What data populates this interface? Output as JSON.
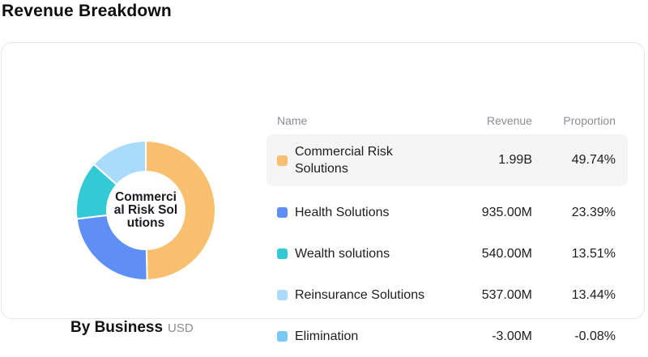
{
  "title": "Revenue Breakdown",
  "footer": {
    "label": "By Business",
    "unit": "USD"
  },
  "donut": {
    "center_lines": [
      "Commerci",
      "al Risk Sol",
      "utions"
    ],
    "center_label": "Commercial Risk Solutions"
  },
  "table": {
    "headers": {
      "name": "Name",
      "revenue": "Revenue",
      "proportion": "Proportion"
    },
    "rows": [
      {
        "name": "Commercial Risk Solutions",
        "revenue": "1.99B",
        "proportion": "49.74%",
        "color": "#f8c06e",
        "highlighted": true
      },
      {
        "name": "Health Solutions",
        "revenue": "935.00M",
        "proportion": "23.39%",
        "color": "#5e8ff5",
        "highlighted": false
      },
      {
        "name": "Wealth solutions",
        "revenue": "540.00M",
        "proportion": "13.51%",
        "color": "#33c9d5",
        "highlighted": false
      },
      {
        "name": "Reinsurance Solutions",
        "revenue": "537.00M",
        "proportion": "13.44%",
        "color": "#a9dcfb",
        "highlighted": false
      },
      {
        "name": "Elimination",
        "revenue": "-3.00M",
        "proportion": "-0.08%",
        "color": "#7ac8f8",
        "highlighted": false
      }
    ]
  },
  "chart_data": {
    "type": "pie",
    "donut": true,
    "title": "Revenue Breakdown",
    "subtitle": "By Business",
    "unit": "USD",
    "direction": "clockwise",
    "start_angle_deg": 0,
    "categories": [
      "Commercial Risk Solutions",
      "Health Solutions",
      "Wealth solutions",
      "Reinsurance Solutions",
      "Elimination"
    ],
    "series": [
      {
        "name": "Revenue",
        "labels": [
          "1.99B",
          "935.00M",
          "540.00M",
          "537.00M",
          "-3.00M"
        ],
        "values": [
          1990000000,
          935000000,
          540000000,
          537000000,
          -3000000
        ]
      },
      {
        "name": "Proportion",
        "unit": "%",
        "values": [
          49.74,
          23.39,
          13.51,
          13.44,
          -0.08
        ]
      }
    ],
    "colors": [
      "#f8c06e",
      "#5e8ff5",
      "#33c9d5",
      "#a9dcfb",
      "#7ac8f8"
    ],
    "center_label": "Commercial Risk Solutions",
    "legend_position": "right-table",
    "grid": false
  }
}
